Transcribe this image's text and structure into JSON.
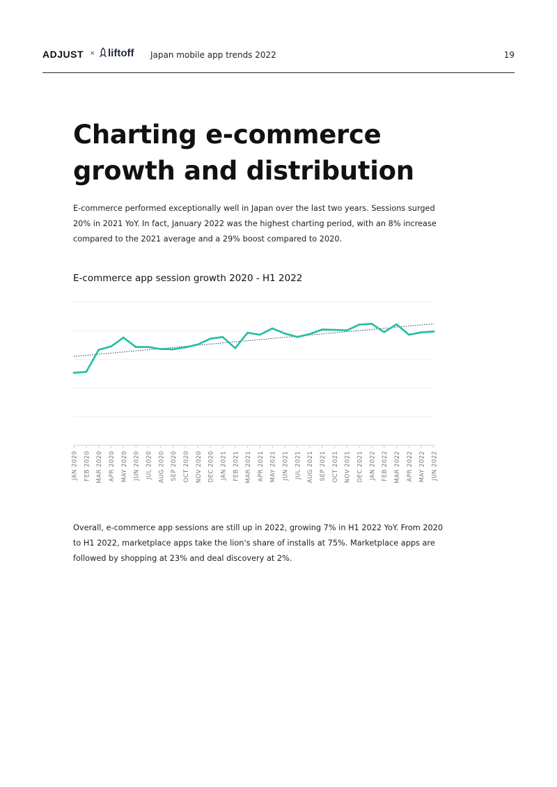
{
  "header": {
    "brand_adjust": "ADJUST",
    "separator": "×",
    "brand_liftoff": "liftoff",
    "report_title": "Japan mobile app trends 2022",
    "page_number": "19"
  },
  "main": {
    "title": "Charting e-commerce growth and distribution",
    "intro": "E-commerce performed exceptionally well in Japan over the last two years. Sessions surged 20% in 2021 YoY. In fact, January 2022 was the highest charting period, with an 8% increase compared to the 2021 average and a 29% boost compared to 2020.",
    "chart_heading": "E-commerce app session growth 2020 - H1 2022",
    "outro": "Overall, e-commerce app sessions are still up in 2022, growing 7% in H1 2022 YoY. From 2020 to H1 2022, marketplace apps take the lion's share of installs at 75%. Marketplace apps are followed by shopping at 23% and deal discovery at 2%."
  },
  "chart_data": {
    "type": "line",
    "title": "E-commerce app session growth 2020 - H1 2022",
    "categories": [
      "JAN 2020",
      "FEB 2020",
      "MAR 2020",
      "APR 2020",
      "MAY 2020",
      "JUN 2020",
      "JUL 2020",
      "AUG 2020",
      "SEP 2020",
      "OCT 2020",
      "NOV 2020",
      "DEC 2020",
      "JAN 2021",
      "FEB 2021",
      "MAR 2021",
      "APR 2021",
      "MAY 2021",
      "JUN 2021",
      "JUL 2021",
      "AUG 2021",
      "SEP 2021",
      "OCT 2021",
      "NOV 2021",
      "DEC 2021",
      "JAN 2022",
      "FEB 2022",
      "MAR 2022",
      "APR 2022",
      "MAY 2022",
      "JUN 2022"
    ],
    "series": [
      {
        "values": [
          2.53,
          2.56,
          3.33,
          3.45,
          3.76,
          3.43,
          3.43,
          3.36,
          3.35,
          3.42,
          3.52,
          3.72,
          3.78,
          3.39,
          3.93,
          3.86,
          4.08,
          3.9,
          3.78,
          3.88,
          4.04,
          4.03,
          4.01,
          4.21,
          4.24,
          3.95,
          4.22,
          3.86,
          3.94,
          3.97
        ],
        "color": "#1dbf9f"
      }
    ],
    "trendline": {
      "style": "dotted",
      "color": "#2b3a4a",
      "start": 3.1,
      "end": 4.24
    },
    "ylim": [
      0,
      5
    ],
    "gridlines": [
      0,
      1,
      2,
      3,
      4,
      5
    ],
    "y_tick_labels": false,
    "grid": true,
    "xlabel": "",
    "ylabel": ""
  }
}
